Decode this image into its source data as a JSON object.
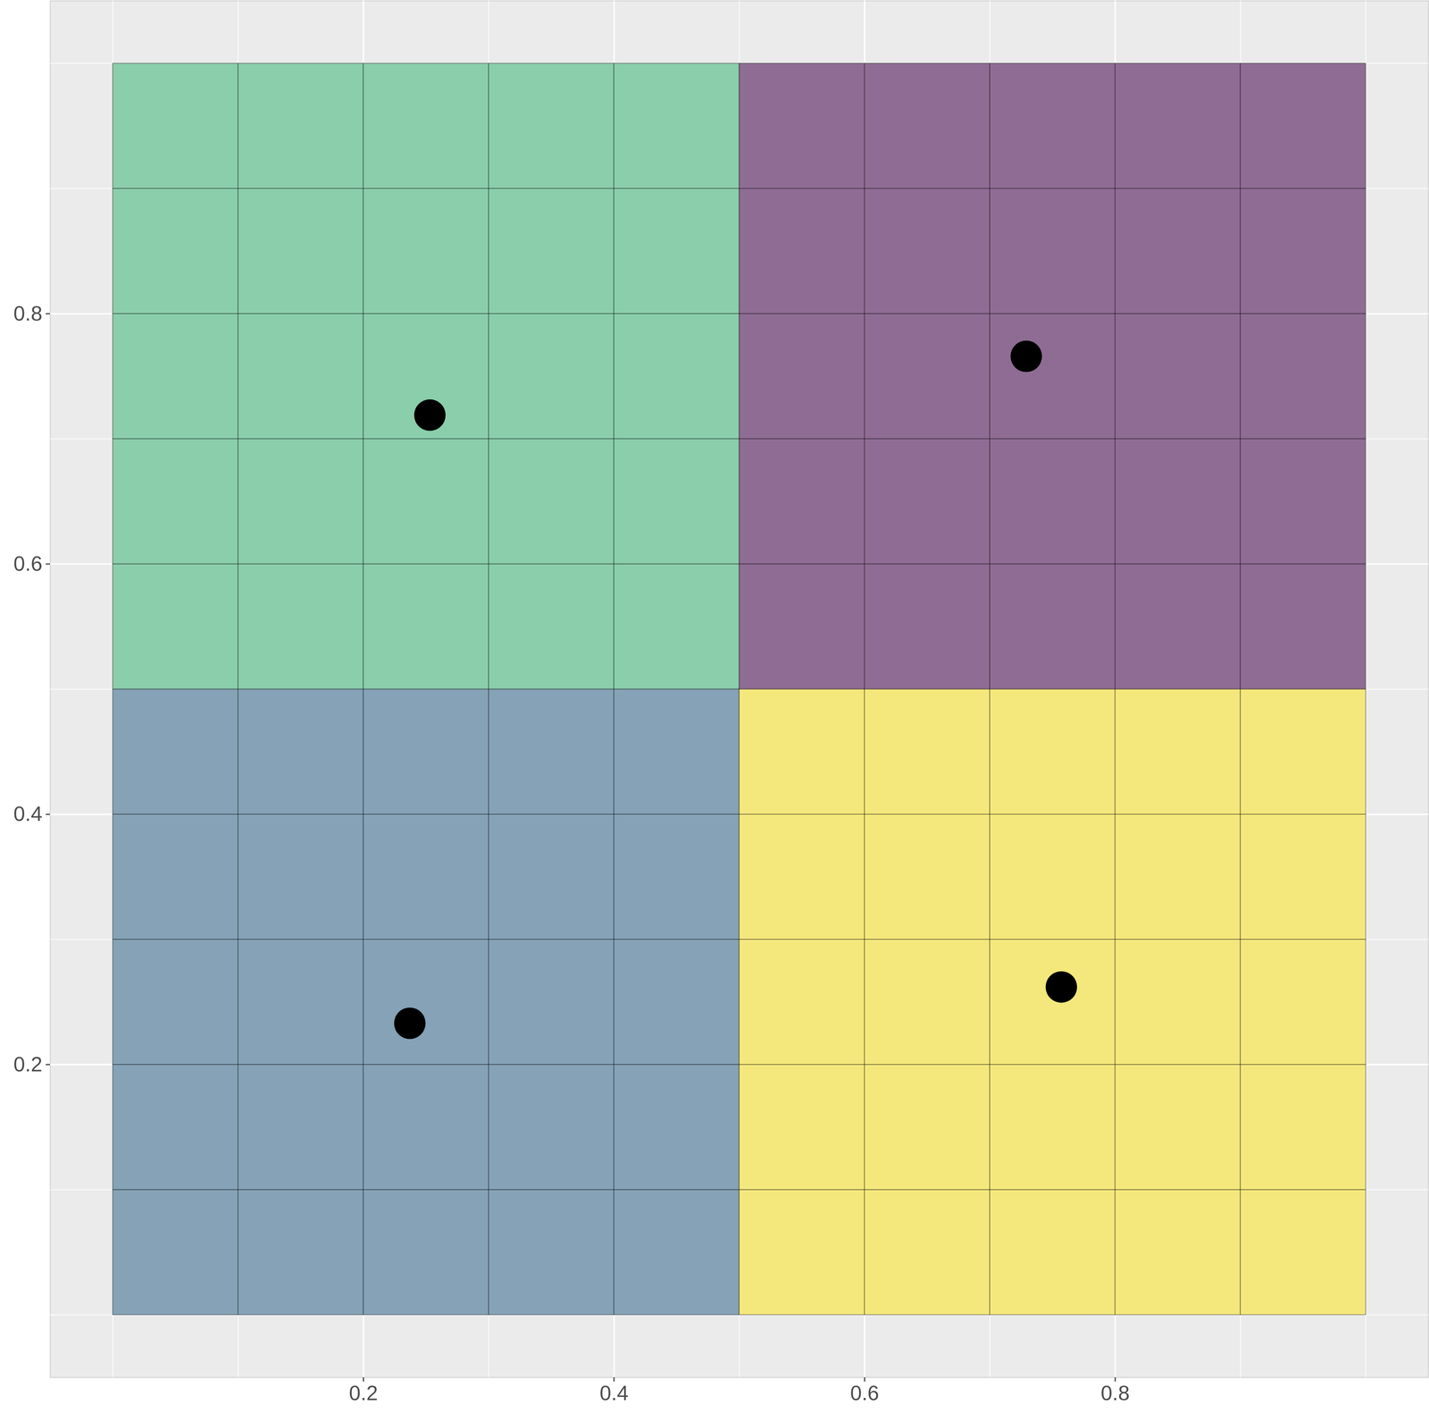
{
  "chart_data": {
    "type": "heatmap",
    "xlim": [
      -0.05,
      1.05
    ],
    "ylim": [
      -0.05,
      1.05
    ],
    "xticks": [
      0.2,
      0.4,
      0.6,
      0.8
    ],
    "yticks": [
      0.2,
      0.4,
      0.6,
      0.8
    ],
    "grid": true,
    "cell_edges_x": [
      0,
      0.1,
      0.2,
      0.3,
      0.4,
      0.5,
      0.6,
      0.7,
      0.8,
      0.9,
      1
    ],
    "cell_edges_y": [
      0,
      0.1,
      0.2,
      0.3,
      0.4,
      0.5,
      0.6,
      0.7,
      0.8,
      0.9,
      1
    ],
    "cell_colors": [
      [
        "#85A2B6",
        "#85A2B6",
        "#85A2B6",
        "#85A2B6",
        "#85A2B6",
        "#F4E87C",
        "#F4E87C",
        "#F4E87C",
        "#F4E87C",
        "#F4E87C"
      ],
      [
        "#85A2B6",
        "#85A2B6",
        "#85A2B6",
        "#85A2B6",
        "#85A2B6",
        "#F4E87C",
        "#F4E87C",
        "#F4E87C",
        "#F4E87C",
        "#F4E87C"
      ],
      [
        "#85A2B6",
        "#85A2B6",
        "#85A2B6",
        "#85A2B6",
        "#85A2B6",
        "#F4E87C",
        "#F4E87C",
        "#F4E87C",
        "#F4E87C",
        "#F4E87C"
      ],
      [
        "#85A2B6",
        "#85A2B6",
        "#85A2B6",
        "#85A2B6",
        "#85A2B6",
        "#F4E87C",
        "#F4E87C",
        "#F4E87C",
        "#F4E87C",
        "#F4E87C"
      ],
      [
        "#85A2B6",
        "#85A2B6",
        "#85A2B6",
        "#85A2B6",
        "#85A2B6",
        "#F4E87C",
        "#F4E87C",
        "#F4E87C",
        "#F4E87C",
        "#F4E87C"
      ],
      [
        "#8ACEAB",
        "#8ACEAB",
        "#8ACEAB",
        "#8ACEAB",
        "#8ACEAB",
        "#8F6C94",
        "#8F6C94",
        "#8F6C94",
        "#8F6C94",
        "#8F6C94"
      ],
      [
        "#8ACEAB",
        "#8ACEAB",
        "#8ACEAB",
        "#8ACEAB",
        "#8ACEAB",
        "#8F6C94",
        "#8F6C94",
        "#8F6C94",
        "#8F6C94",
        "#8F6C94"
      ],
      [
        "#8ACEAB",
        "#8ACEAB",
        "#8ACEAB",
        "#8ACEAB",
        "#8ACEAB",
        "#8F6C94",
        "#8F6C94",
        "#8F6C94",
        "#8F6C94",
        "#8F6C94"
      ],
      [
        "#8ACEAB",
        "#8ACEAB",
        "#8ACEAB",
        "#8ACEAB",
        "#8ACEAB",
        "#8F6C94",
        "#8F6C94",
        "#8F6C94",
        "#8F6C94",
        "#8F6C94"
      ],
      [
        "#8ACEAB",
        "#8ACEAB",
        "#8ACEAB",
        "#8ACEAB",
        "#8ACEAB",
        "#8F6C94",
        "#8F6C94",
        "#8F6C94",
        "#8F6C94",
        "#8F6C94"
      ]
    ],
    "points": {
      "x": [
        0.253,
        0.729,
        0.237,
        0.757
      ],
      "y": [
        0.719,
        0.766,
        0.233,
        0.262
      ],
      "color": "#000000"
    }
  }
}
